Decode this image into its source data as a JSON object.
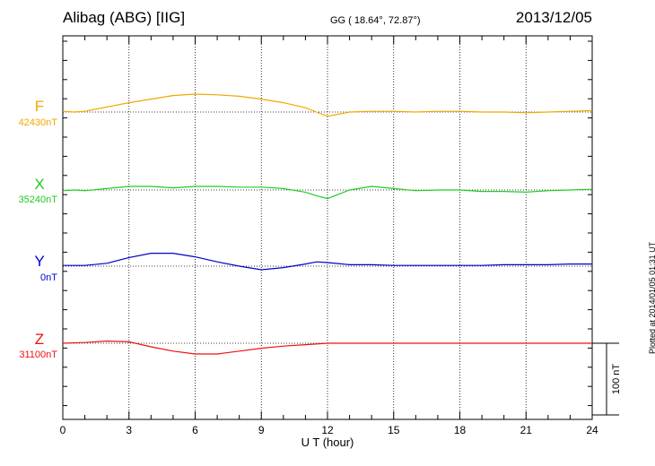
{
  "header": {
    "station": "Alibag (ABG)  [IIG]",
    "coords": "GG ( 18.64°,  72.87°)",
    "date": "2013/12/05",
    "plotted": "Plotted at 2014/01/05 01:31  UT"
  },
  "chart_data": {
    "type": "line",
    "title": "Alibag (ABG)  [IIG]",
    "xlabel": "U T (hour)",
    "xlim": [
      0,
      24
    ],
    "xticks": [
      0,
      3,
      6,
      9,
      12,
      15,
      18,
      21,
      24
    ],
    "grid": true,
    "scale_bar": {
      "label": "100 nT",
      "value": 100
    },
    "series": [
      {
        "name": "F",
        "baseline_label": "42430nT",
        "color": "#f0a800",
        "x": [
          0,
          0.5,
          1,
          2,
          3,
          4,
          5,
          6,
          7,
          8,
          9,
          10,
          11,
          11.5,
          12,
          12.5,
          13,
          14,
          15,
          16,
          17,
          18,
          19,
          20,
          21,
          22,
          23,
          24
        ],
        "y": [
          42431,
          42430,
          42431,
          42437,
          42443,
          42448,
          42453,
          42455,
          42454,
          42452,
          42448,
          42443,
          42436,
          42430,
          42424,
          42427,
          42430,
          42431,
          42431,
          42430,
          42431,
          42431,
          42430,
          42430,
          42429,
          42430,
          42431,
          42432
        ]
      },
      {
        "name": "X",
        "baseline_label": "35240nT",
        "color": "#22cc22",
        "x": [
          0,
          0.5,
          1,
          2,
          3,
          4,
          5,
          6,
          7,
          8,
          9,
          10,
          11,
          11.5,
          12,
          12.5,
          13,
          14,
          15,
          16,
          17,
          18,
          19,
          20,
          21,
          22,
          23,
          24
        ],
        "y": [
          35239,
          35240,
          35239,
          35242,
          35245,
          35245,
          35243,
          35245,
          35245,
          35244,
          35244,
          35242,
          35237,
          35232,
          35228,
          35234,
          35240,
          35245,
          35242,
          35239,
          35240,
          35240,
          35238,
          35238,
          35237,
          35239,
          35240,
          35241
        ]
      },
      {
        "name": "Y",
        "baseline_label": "0nT",
        "color": "#0000cc",
        "x": [
          0,
          1,
          2,
          3,
          4,
          5,
          6,
          7,
          8,
          9,
          10,
          11,
          11.5,
          12,
          13,
          14,
          15,
          16,
          17,
          18,
          19,
          20,
          21,
          22,
          23,
          24
        ],
        "y": [
          1,
          1,
          4,
          12,
          18,
          18,
          13,
          6,
          0,
          -5,
          -2,
          3,
          6,
          5,
          2,
          2,
          1,
          1,
          1,
          1,
          1,
          2,
          2,
          2,
          3,
          3
        ]
      },
      {
        "name": "Z",
        "baseline_label": "31100nT",
        "color": "#ee1111",
        "x": [
          0,
          1,
          2,
          3,
          4,
          5,
          6,
          7,
          8,
          9,
          10,
          11,
          12,
          13,
          14,
          15,
          16,
          17,
          18,
          19,
          20,
          21,
          22,
          23,
          24
        ],
        "y": [
          31100,
          31101,
          31103,
          31102,
          31095,
          31089,
          31085,
          31085,
          31089,
          31093,
          31096,
          31098,
          31100,
          31100,
          31100,
          31100,
          31100,
          31100,
          31100,
          31100,
          31100,
          31100,
          31100,
          31100,
          31100
        ]
      }
    ]
  }
}
